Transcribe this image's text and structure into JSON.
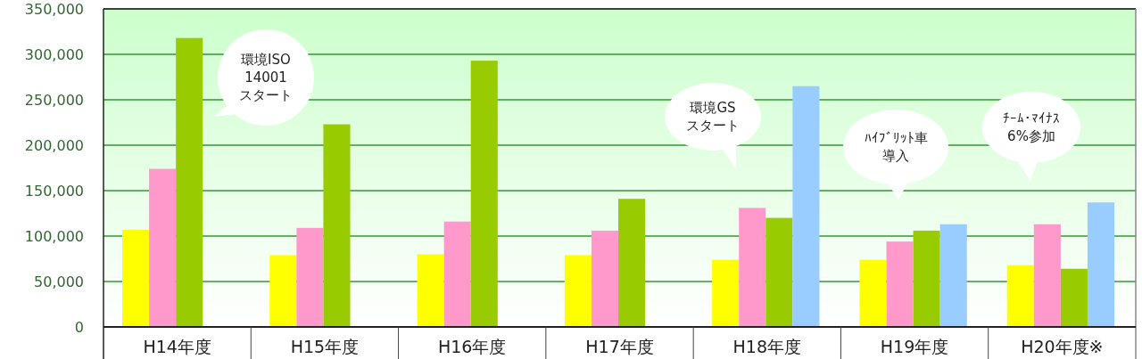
{
  "chart_data": {
    "type": "bar",
    "categories": [
      "H14年度",
      "H15年度",
      "H16年度",
      "H17年度",
      "H18年度",
      "H19年度",
      "H20年度※"
    ],
    "series": [
      {
        "color": "#ffff00",
        "values": [
          107000,
          79000,
          80000,
          79000,
          74000,
          74000,
          68000
        ]
      },
      {
        "color": "#ff99cc",
        "values": [
          174000,
          109000,
          116000,
          106000,
          131000,
          94000,
          113000
        ]
      },
      {
        "color": "#99cc00",
        "values": [
          318000,
          223000,
          293000,
          141000,
          120000,
          106000,
          64000
        ]
      },
      {
        "color": "#99ccff",
        "values": [
          null,
          null,
          null,
          null,
          265000,
          113000,
          137000
        ]
      }
    ],
    "ylim": [
      0,
      350000
    ],
    "yticks": [
      {
        "value": 0,
        "label": "0"
      },
      {
        "value": 50000,
        "label": "50,000"
      },
      {
        "value": 100000,
        "label": "100,000"
      },
      {
        "value": 150000,
        "label": "150,000"
      },
      {
        "value": 200000,
        "label": "200,000"
      },
      {
        "value": 250000,
        "label": "250,000"
      },
      {
        "value": 300000,
        "label": "300,000"
      },
      {
        "value": 350000,
        "label": "350,000"
      }
    ],
    "grid": "y",
    "annotations": [
      "環境ISO",
      "14001",
      "スタート",
      "環境GS",
      "スタート",
      "ﾊｲﾌﾞﾘｯﾄ車",
      "導入",
      "ﾁｰﾑ･ﾏｲﾅｽ",
      "6%参加"
    ]
  }
}
